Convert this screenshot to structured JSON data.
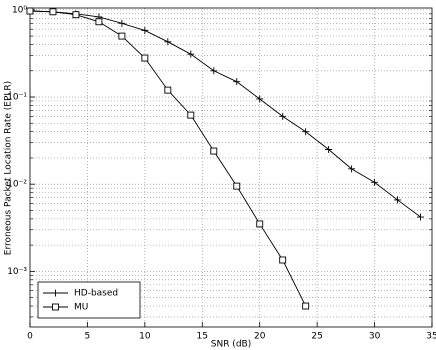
{
  "chart_data": {
    "type": "line",
    "x_label": "SNR (dB)",
    "y_label": "Erroneous Packet Location Rate (EPLR)",
    "x": [
      0,
      2,
      4,
      6,
      8,
      10,
      12,
      14,
      16,
      18,
      20,
      22,
      24,
      26,
      28,
      30,
      32,
      34
    ],
    "series": [
      {
        "name": "HD-based",
        "color": "#000000",
        "marker": "plus",
        "values": [
          0.97,
          0.95,
          0.9,
          0.83,
          0.7,
          0.58,
          0.43,
          0.31,
          0.2,
          0.15,
          0.095,
          0.06,
          0.04,
          0.025,
          0.015,
          0.0105,
          0.0066,
          0.0042
        ]
      },
      {
        "name": "MU",
        "color": "#000000",
        "marker": "square",
        "values": [
          0.97,
          0.95,
          0.88,
          0.73,
          0.5,
          0.28,
          0.12,
          0.062,
          0.024,
          0.0095,
          0.0035,
          0.00135,
          0.0004,
          null,
          null,
          null,
          null,
          null
        ]
      }
    ],
    "xlim": [
      0,
      35
    ],
    "xticks": [
      0,
      5,
      10,
      15,
      20,
      25,
      30,
      35
    ],
    "ylim": [
      0.00023,
      1.05
    ],
    "yticks": [
      {
        "value": 0.001,
        "label": "10⁻³"
      },
      {
        "value": 0.01,
        "label": "10⁻²"
      },
      {
        "value": 0.1,
        "label": "10⁻¹"
      },
      {
        "value": 1,
        "label": "10⁰"
      }
    ],
    "log_y": true,
    "grid": true,
    "minor_grid": true,
    "legend": "lower-left"
  }
}
